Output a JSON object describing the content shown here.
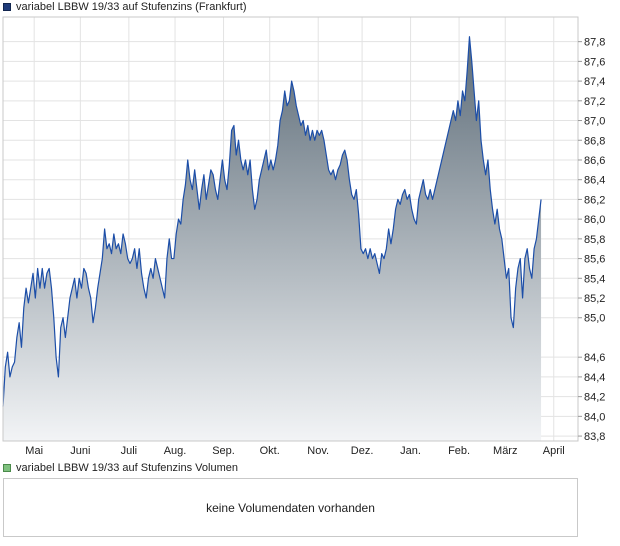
{
  "legend": {
    "price_label": "variabel LBBW 19/33 auf Stufenzins (Frankfurt)",
    "volume_label": "variabel LBBW 19/33 auf Stufenzins Volumen"
  },
  "volume": {
    "message": "keine Volumendaten vorhanden"
  },
  "colors": {
    "line": "#1c4ea8",
    "fill_top": "#5d6c78",
    "fill_bottom": "#f2f4f6",
    "grid": "#e3e3e3"
  },
  "chart_data": {
    "type": "area",
    "title": "",
    "xlabel": "",
    "ylabel": "",
    "ylim": [
      83.75,
      88.05
    ],
    "yticks": [
      "87,8",
      "87,6",
      "87,4",
      "87,2",
      "87,0",
      "86,8",
      "86,6",
      "86,4",
      "86,2",
      "86,0",
      "85,8",
      "85,6",
      "85,4",
      "85,2",
      "85,0",
      "84,6",
      "84,4",
      "84,2",
      "84,0",
      "83,8"
    ],
    "ytick_values": [
      87.8,
      87.6,
      87.4,
      87.2,
      87.0,
      86.8,
      86.6,
      86.4,
      86.2,
      86.0,
      85.8,
      85.6,
      85.4,
      85.2,
      85.0,
      84.6,
      84.4,
      84.2,
      84.0,
      83.8
    ],
    "xticks": [
      {
        "label": "Mai",
        "x": 13.5
      },
      {
        "label": "Juni",
        "x": 33.5
      },
      {
        "label": "Juli",
        "x": 54.5
      },
      {
        "label": "Aug.",
        "x": 74.5
      },
      {
        "label": "Sep.",
        "x": 95.5
      },
      {
        "label": "Okt.",
        "x": 115.5
      },
      {
        "label": "Nov.",
        "x": 136.5
      },
      {
        "label": "Dez.",
        "x": 155.5
      },
      {
        "label": "Jan.",
        "x": 176.5
      },
      {
        "label": "Feb.",
        "x": 197.5
      },
      {
        "label": "März",
        "x": 217.5
      },
      {
        "label": "April",
        "x": 238.5
      }
    ],
    "xlim": [
      0,
      249
    ],
    "series": [
      {
        "values": [
          [
            0,
            84.1
          ],
          [
            1,
            84.5
          ],
          [
            2,
            84.65
          ],
          [
            3,
            84.4
          ],
          [
            4,
            84.5
          ],
          [
            5,
            84.55
          ],
          [
            6,
            84.8
          ],
          [
            7,
            84.95
          ],
          [
            8,
            84.7
          ],
          [
            9,
            85.1
          ],
          [
            10,
            85.3
          ],
          [
            11,
            85.15
          ],
          [
            12,
            85.3
          ],
          [
            13,
            85.45
          ],
          [
            14,
            85.2
          ],
          [
            15,
            85.5
          ],
          [
            16,
            85.3
          ],
          [
            17,
            85.5
          ],
          [
            18,
            85.3
          ],
          [
            19,
            85.45
          ],
          [
            20,
            85.5
          ],
          [
            21,
            85.3
          ],
          [
            22,
            85.0
          ],
          [
            23,
            84.6
          ],
          [
            24,
            84.4
          ],
          [
            25,
            84.9
          ],
          [
            26,
            85.0
          ],
          [
            27,
            84.8
          ],
          [
            28,
            85.0
          ],
          [
            29,
            85.2
          ],
          [
            30,
            85.3
          ],
          [
            31,
            85.4
          ],
          [
            32,
            85.2
          ],
          [
            33,
            85.4
          ],
          [
            34,
            85.3
          ],
          [
            35,
            85.5
          ],
          [
            36,
            85.45
          ],
          [
            37,
            85.3
          ],
          [
            38,
            85.2
          ],
          [
            39,
            84.95
          ],
          [
            40,
            85.1
          ],
          [
            41,
            85.3
          ],
          [
            42,
            85.45
          ],
          [
            43,
            85.6
          ],
          [
            44,
            85.9
          ],
          [
            45,
            85.7
          ],
          [
            46,
            85.75
          ],
          [
            47,
            85.65
          ],
          [
            48,
            85.85
          ],
          [
            49,
            85.7
          ],
          [
            50,
            85.75
          ],
          [
            51,
            85.65
          ],
          [
            52,
            85.85
          ],
          [
            53,
            85.75
          ],
          [
            54,
            85.6
          ],
          [
            55,
            85.55
          ],
          [
            56,
            85.6
          ],
          [
            57,
            85.7
          ],
          [
            58,
            85.5
          ],
          [
            59,
            85.7
          ],
          [
            60,
            85.45
          ],
          [
            61,
            85.3
          ],
          [
            62,
            85.2
          ],
          [
            63,
            85.4
          ],
          [
            64,
            85.5
          ],
          [
            65,
            85.4
          ],
          [
            66,
            85.6
          ],
          [
            67,
            85.5
          ],
          [
            68,
            85.4
          ],
          [
            69,
            85.3
          ],
          [
            70,
            85.2
          ],
          [
            71,
            85.6
          ],
          [
            72,
            85.8
          ],
          [
            73,
            85.6
          ],
          [
            74,
            85.6
          ],
          [
            75,
            85.85
          ],
          [
            76,
            86.0
          ],
          [
            77,
            85.95
          ],
          [
            78,
            86.2
          ],
          [
            79,
            86.35
          ],
          [
            80,
            86.6
          ],
          [
            81,
            86.4
          ],
          [
            82,
            86.3
          ],
          [
            83,
            86.5
          ],
          [
            84,
            86.3
          ],
          [
            85,
            86.1
          ],
          [
            86,
            86.3
          ],
          [
            87,
            86.45
          ],
          [
            88,
            86.2
          ],
          [
            89,
            86.35
          ],
          [
            90,
            86.5
          ],
          [
            91,
            86.45
          ],
          [
            92,
            86.3
          ],
          [
            93,
            86.2
          ],
          [
            94,
            86.4
          ],
          [
            95,
            86.6
          ],
          [
            96,
            86.4
          ],
          [
            97,
            86.3
          ],
          [
            98,
            86.55
          ],
          [
            99,
            86.9
          ],
          [
            100,
            86.95
          ],
          [
            101,
            86.65
          ],
          [
            102,
            86.8
          ],
          [
            103,
            86.6
          ],
          [
            104,
            86.5
          ],
          [
            105,
            86.6
          ],
          [
            106,
            86.45
          ],
          [
            107,
            86.6
          ],
          [
            108,
            86.3
          ],
          [
            109,
            86.1
          ],
          [
            110,
            86.2
          ],
          [
            111,
            86.4
          ],
          [
            112,
            86.5
          ],
          [
            113,
            86.6
          ],
          [
            114,
            86.7
          ],
          [
            115,
            86.5
          ],
          [
            116,
            86.6
          ],
          [
            117,
            86.5
          ],
          [
            118,
            86.6
          ],
          [
            119,
            86.75
          ],
          [
            120,
            87.0
          ],
          [
            121,
            87.1
          ],
          [
            122,
            87.3
          ],
          [
            123,
            87.15
          ],
          [
            124,
            87.2
          ],
          [
            125,
            87.4
          ],
          [
            126,
            87.3
          ],
          [
            127,
            87.15
          ],
          [
            128,
            87.05
          ],
          [
            129,
            86.95
          ],
          [
            130,
            87.0
          ],
          [
            131,
            86.85
          ],
          [
            132,
            86.95
          ],
          [
            133,
            86.8
          ],
          [
            134,
            86.9
          ],
          [
            135,
            86.8
          ],
          [
            136,
            86.9
          ],
          [
            137,
            86.85
          ],
          [
            138,
            86.9
          ],
          [
            139,
            86.8
          ],
          [
            140,
            86.65
          ],
          [
            141,
            86.5
          ],
          [
            142,
            86.45
          ],
          [
            143,
            86.5
          ],
          [
            144,
            86.4
          ],
          [
            145,
            86.5
          ],
          [
            146,
            86.55
          ],
          [
            147,
            86.65
          ],
          [
            148,
            86.7
          ],
          [
            149,
            86.6
          ],
          [
            150,
            86.4
          ],
          [
            151,
            86.25
          ],
          [
            152,
            86.2
          ],
          [
            153,
            86.3
          ],
          [
            154,
            86.05
          ],
          [
            155,
            85.7
          ],
          [
            156,
            85.65
          ],
          [
            157,
            85.7
          ],
          [
            158,
            85.6
          ],
          [
            159,
            85.7
          ],
          [
            160,
            85.6
          ],
          [
            161,
            85.65
          ],
          [
            162,
            85.55
          ],
          [
            163,
            85.45
          ],
          [
            164,
            85.65
          ],
          [
            165,
            85.6
          ],
          [
            166,
            85.7
          ],
          [
            167,
            85.9
          ],
          [
            168,
            85.75
          ],
          [
            169,
            85.9
          ],
          [
            170,
            86.1
          ],
          [
            171,
            86.2
          ],
          [
            172,
            86.15
          ],
          [
            173,
            86.25
          ],
          [
            174,
            86.3
          ],
          [
            175,
            86.2
          ],
          [
            176,
            86.25
          ],
          [
            177,
            86.1
          ],
          [
            178,
            86.0
          ],
          [
            179,
            85.95
          ],
          [
            180,
            86.2
          ],
          [
            181,
            86.3
          ],
          [
            182,
            86.4
          ],
          [
            183,
            86.25
          ],
          [
            184,
            86.2
          ],
          [
            185,
            86.3
          ],
          [
            186,
            86.2
          ],
          [
            187,
            86.3
          ],
          [
            188,
            86.4
          ],
          [
            189,
            86.5
          ],
          [
            190,
            86.6
          ],
          [
            191,
            86.7
          ],
          [
            192,
            86.8
          ],
          [
            193,
            86.9
          ],
          [
            194,
            87.0
          ],
          [
            195,
            87.1
          ],
          [
            196,
            87.0
          ],
          [
            197,
            87.2
          ],
          [
            198,
            87.05
          ],
          [
            199,
            87.3
          ],
          [
            200,
            87.2
          ],
          [
            201,
            87.5
          ],
          [
            202,
            87.85
          ],
          [
            203,
            87.6
          ],
          [
            204,
            87.3
          ],
          [
            205,
            87.0
          ],
          [
            206,
            87.2
          ],
          [
            207,
            86.8
          ],
          [
            208,
            86.6
          ],
          [
            209,
            86.45
          ],
          [
            210,
            86.6
          ],
          [
            211,
            86.3
          ],
          [
            212,
            86.1
          ],
          [
            213,
            85.95
          ],
          [
            214,
            86.1
          ],
          [
            215,
            85.9
          ],
          [
            216,
            85.8
          ],
          [
            217,
            85.6
          ],
          [
            218,
            85.4
          ],
          [
            219,
            85.5
          ],
          [
            220,
            85.0
          ],
          [
            221,
            84.9
          ],
          [
            222,
            85.3
          ],
          [
            223,
            85.5
          ],
          [
            224,
            85.6
          ],
          [
            225,
            85.2
          ],
          [
            226,
            85.6
          ],
          [
            227,
            85.7
          ],
          [
            228,
            85.5
          ],
          [
            229,
            85.4
          ],
          [
            230,
            85.7
          ],
          [
            231,
            85.8
          ],
          [
            232,
            86.0
          ],
          [
            233,
            86.2
          ]
        ]
      }
    ]
  }
}
